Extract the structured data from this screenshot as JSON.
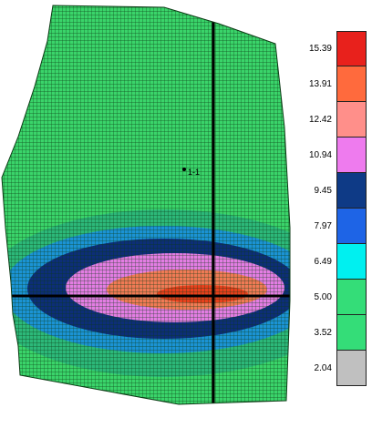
{
  "reservoir_map": {
    "well_label": "1-1",
    "grid_line_color": "#0b3a14",
    "bands": [
      {
        "color": "#3ad46a"
      },
      {
        "color": "#2cb879"
      },
      {
        "color": "#1b93d4"
      },
      {
        "color": "#0d2e78"
      },
      {
        "color": "#e37de3"
      },
      {
        "color": "#f07a55"
      },
      {
        "color": "#e8401c"
      }
    ]
  },
  "legend": {
    "entries": [
      {
        "value": "15.39",
        "color": "#e8211c"
      },
      {
        "value": "13.91",
        "color": "#ff6a3d"
      },
      {
        "value": "12.42",
        "color": "#ff8f8a"
      },
      {
        "value": "10.94",
        "color": "#ee7bee"
      },
      {
        "value": "9.45",
        "color": "#0e3a86"
      },
      {
        "value": "7.97",
        "color": "#1e64e6"
      },
      {
        "value": "6.49",
        "color": "#00f0f0"
      },
      {
        "value": "5.00",
        "color": "#34dd78"
      },
      {
        "value": "3.52",
        "color": "#34dd78"
      },
      {
        "value": "2.04",
        "color": "#c0c0c0"
      }
    ]
  }
}
